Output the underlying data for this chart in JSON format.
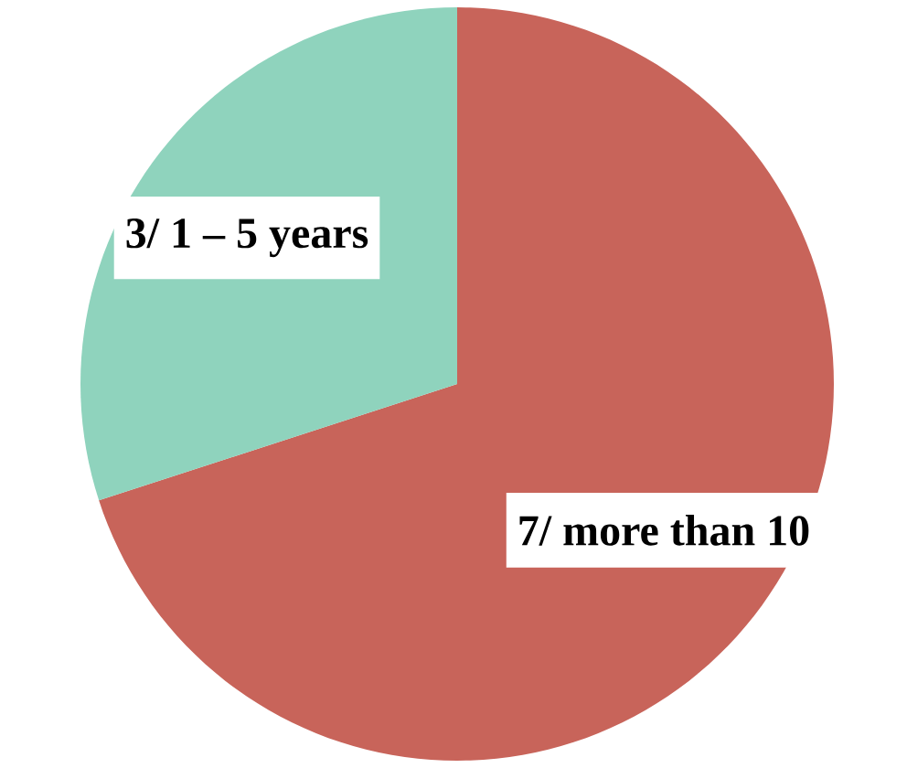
{
  "chart_data": {
    "type": "pie",
    "categories": [
      "3/ 1 – 5 years",
      "7/ more than 10"
    ],
    "values": [
      3,
      7
    ],
    "colors": [
      "#8fd3bd",
      "#c8645a"
    ]
  }
}
